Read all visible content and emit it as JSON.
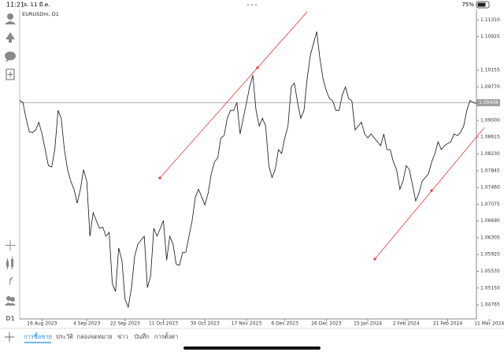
{
  "status_bar": {
    "time": "11:21",
    "date": "จ. 11 มี.ค.",
    "battery": "75%"
  },
  "sidebar": {
    "timeframe": "D1"
  },
  "chart_data": {
    "type": "line",
    "title": "EURUSDm, D1",
    "color": "#111111",
    "values": [
      1.0946,
      1.0941,
      1.0905,
      1.0874,
      1.0872,
      1.0878,
      1.0896,
      1.0869,
      1.0833,
      1.0796,
      1.0793,
      1.0833,
      1.0923,
      1.0905,
      1.0833,
      1.0787,
      1.076,
      1.0742,
      1.071,
      1.0742,
      1.0787,
      1.076,
      1.0634,
      1.0688,
      1.067,
      1.0652,
      1.0655,
      1.0634,
      1.0643,
      1.0525,
      1.0507,
      1.0607,
      1.0579,
      1.0489,
      1.0471,
      1.0516,
      1.0588,
      1.0616,
      1.0625,
      1.0634,
      1.0516,
      1.0543,
      1.0652,
      1.0634,
      1.0652,
      1.067,
      1.0579,
      1.0634,
      1.0616,
      1.057,
      1.0567,
      1.0597,
      1.0597,
      1.0634,
      1.067,
      1.0724,
      1.0742,
      1.0724,
      1.0706,
      1.0733,
      1.0778,
      1.0805,
      1.0814,
      1.086,
      1.0865,
      1.0905,
      1.0923,
      1.0923,
      1.0941,
      1.0869,
      1.0905,
      1.0941,
      1.0977,
      1.1004,
      1.0923,
      1.0887,
      1.0905,
      1.0887,
      1.0796,
      1.0769,
      1.0787,
      1.0833,
      1.0824,
      1.086,
      1.0887,
      1.0977,
      1.0986,
      1.0941,
      1.0905,
      1.0923,
      1.0995,
      1.105,
      1.1077,
      1.1104,
      1.1041,
      1.0995,
      1.0968,
      1.095,
      1.0945,
      1.0923,
      1.0923,
      1.0959,
      1.0977,
      1.095,
      1.0945,
      1.0878,
      1.0887,
      1.0896,
      1.0869,
      1.086,
      1.0869,
      1.086,
      1.0851,
      1.0842,
      1.0869,
      1.0833,
      1.0833,
      1.0805,
      1.0787,
      1.0742,
      1.076,
      1.0796,
      1.0787,
      1.0751,
      1.0715,
      1.0733,
      1.076,
      1.0769,
      1.0778,
      1.0805,
      1.0824,
      1.0851,
      1.0833,
      1.0842,
      1.0847,
      1.0851,
      1.0869,
      1.0865,
      1.0872,
      1.0887,
      1.0923,
      1.0946,
      1.0941,
      1.0939
    ],
    "xlim": [
      0,
      143
    ],
    "xticks": [
      {
        "value": 7,
        "label": "16 Aug 2023"
      },
      {
        "value": 21,
        "label": "4 Sep 2023"
      },
      {
        "value": 33,
        "label": "22 Sep 2023"
      },
      {
        "value": 45,
        "label": "11 Oct 2023"
      },
      {
        "value": 58,
        "label": "30 Oct 2023"
      },
      {
        "value": 71,
        "label": "17 Nov 2023"
      },
      {
        "value": 83,
        "label": "6 Dec 2023"
      },
      {
        "value": 96,
        "label": "26 Dec 2023"
      },
      {
        "value": 109,
        "label": "15 Jan 2024"
      },
      {
        "value": 121,
        "label": "2 Feb 2024"
      },
      {
        "value": 134,
        "label": "21 Feb 2024"
      },
      {
        "value": 147,
        "label": "11 Mar 2024"
      }
    ],
    "ylim": [
      1.0444,
      1.1155
    ],
    "yticks": [
      {
        "value": 1.1131,
        "label": "1.11310"
      },
      {
        "value": 1.10925,
        "label": "1.10925"
      },
      {
        "value": 1.10155,
        "label": "1.10155"
      },
      {
        "value": 1.0977,
        "label": "1.09770"
      },
      {
        "value": 1.09,
        "label": "1.09000"
      },
      {
        "value": 1.08615,
        "label": "1.08615"
      },
      {
        "value": 1.0823,
        "label": "1.08230"
      },
      {
        "value": 1.07845,
        "label": "1.07845"
      },
      {
        "value": 1.0746,
        "label": "1.07460"
      },
      {
        "value": 1.07075,
        "label": "1.07075"
      },
      {
        "value": 1.0669,
        "label": "1.06690"
      },
      {
        "value": 1.06305,
        "label": "1.06305"
      },
      {
        "value": 1.0592,
        "label": "1.05920"
      },
      {
        "value": 1.05535,
        "label": "1.05535"
      },
      {
        "value": 1.0515,
        "label": "1.05150"
      },
      {
        "value": 1.04765,
        "label": "1.04765"
      }
    ],
    "current_price": 1.09408
  },
  "tabs": [
    "การซื้อขาย",
    "ประวัติ",
    "กล่องจดหมาย",
    "ข่าว",
    "บันทึก",
    "การตั้งค่า"
  ]
}
